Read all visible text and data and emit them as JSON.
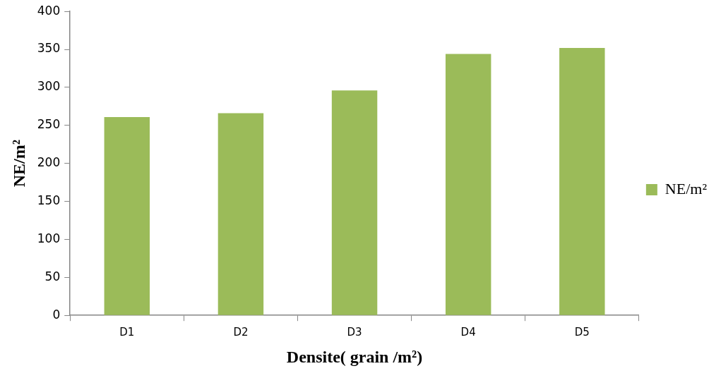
{
  "chart_data": {
    "type": "bar",
    "xlabel": "Densite( grain /m²)",
    "ylabel": "NE/m²",
    "categories": [
      "D1",
      "D2",
      "D3",
      "D4",
      "D5"
    ],
    "series": [
      {
        "name": "NE/m²",
        "color": "#9bbb59",
        "values": [
          261,
          266,
          296,
          344,
          352
        ]
      }
    ],
    "ylim": [
      0,
      400
    ],
    "yticks": [
      0,
      50,
      100,
      150,
      200,
      250,
      300,
      350,
      400
    ],
    "grid": false,
    "legend": "right"
  }
}
